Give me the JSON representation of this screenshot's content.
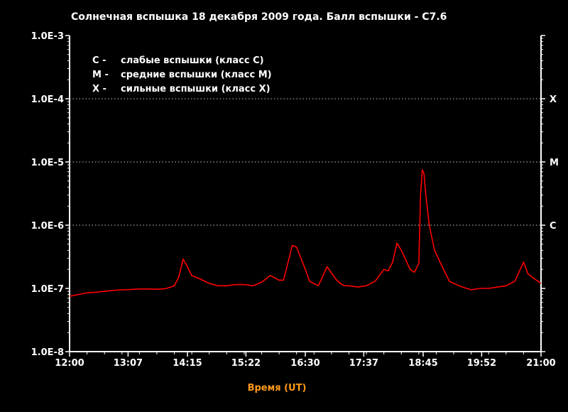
{
  "chart_data": {
    "type": "line",
    "title": "Солнечная вспышка 18 декабря 2009 года. Балл вспышки - С7.6",
    "xlabel": "Время (UT)",
    "ylabel": "",
    "y_scale": "log",
    "ylim": [
      1e-08,
      0.001
    ],
    "xlim": [
      "12:00",
      "21:00"
    ],
    "x_ticks": [
      "12:00",
      "13:07",
      "14:15",
      "15:22",
      "16:30",
      "17:37",
      "18:45",
      "19:52",
      "21:00"
    ],
    "y_ticks": [
      "1.0E-8",
      "1.0E-7",
      "1.0E-6",
      "1.0E-5",
      "1.0E-4",
      "1.0E-3"
    ],
    "grid": "dotted horizontal lines at 1.0E-6, 1.0E-5, 1.0E-4",
    "class_levels": [
      {
        "label": "X",
        "value": 0.0001
      },
      {
        "label": "M",
        "value": 1e-05
      },
      {
        "label": "C",
        "value": 1e-06
      }
    ],
    "legend": [
      {
        "key": "C -",
        "text": "слабые вспышки  (класс С)"
      },
      {
        "key": "M -",
        "text": "средние вспышки (класс M)"
      },
      {
        "key": "X -",
        "text": "сильные вспышки (класс X)"
      }
    ],
    "series": [
      {
        "color": "#ff0000",
        "x": [
          "12:00",
          "12:10",
          "12:20",
          "12:30",
          "12:40",
          "12:50",
          "13:00",
          "13:10",
          "13:20",
          "13:30",
          "13:40",
          "13:50",
          "14:00",
          "14:05",
          "14:10",
          "14:15",
          "14:20",
          "14:30",
          "14:40",
          "14:50",
          "15:00",
          "15:10",
          "15:20",
          "15:30",
          "15:40",
          "15:50",
          "16:00",
          "16:05",
          "16:10",
          "16:15",
          "16:20",
          "16:25",
          "16:30",
          "16:35",
          "16:45",
          "16:55",
          "17:05",
          "17:10",
          "17:15",
          "17:20",
          "17:30",
          "17:40",
          "17:50",
          "18:00",
          "18:05",
          "18:10",
          "18:15",
          "18:20",
          "18:30",
          "18:35",
          "18:40",
          "18:42",
          "18:44",
          "18:46",
          "18:48",
          "18:52",
          "18:58",
          "19:05",
          "19:10",
          "19:15",
          "19:20",
          "19:30",
          "19:40",
          "19:50",
          "20:00",
          "20:10",
          "20:20",
          "20:30",
          "20:40",
          "20:45",
          "20:50",
          "21:00"
        ],
        "values": [
          7.5e-08,
          8e-08,
          8.5e-08,
          8.7e-08,
          9e-08,
          9.3e-08,
          9.5e-08,
          9.6e-08,
          9.8e-08,
          9.8e-08,
          9.7e-08,
          9.9e-08,
          1.1e-07,
          1.5e-07,
          2.9e-07,
          2.2e-07,
          1.6e-07,
          1.4e-07,
          1.2e-07,
          1.1e-07,
          1.1e-07,
          1.15e-07,
          1.15e-07,
          1.1e-07,
          1.25e-07,
          1.6e-07,
          1.35e-07,
          1.35e-07,
          2.5e-07,
          4.8e-07,
          4.5e-07,
          3e-07,
          2e-07,
          1.3e-07,
          1.1e-07,
          2.2e-07,
          1.4e-07,
          1.2e-07,
          1.1e-07,
          1.1e-07,
          1.05e-07,
          1.1e-07,
          1.3e-07,
          2e-07,
          1.9e-07,
          2.6e-07,
          5.2e-07,
          4e-07,
          2e-07,
          1.8e-07,
          2.5e-07,
          3e-06,
          7.5e-06,
          6.5e-06,
          3e-06,
          1e-06,
          4e-07,
          2.5e-07,
          1.8e-07,
          1.3e-07,
          1.2e-07,
          1.05e-07,
          9.5e-08,
          1e-07,
          1e-07,
          1.05e-07,
          1.1e-07,
          1.3e-07,
          2.6e-07,
          1.7e-07,
          1.5e-07,
          1.2e-07
        ]
      }
    ]
  }
}
